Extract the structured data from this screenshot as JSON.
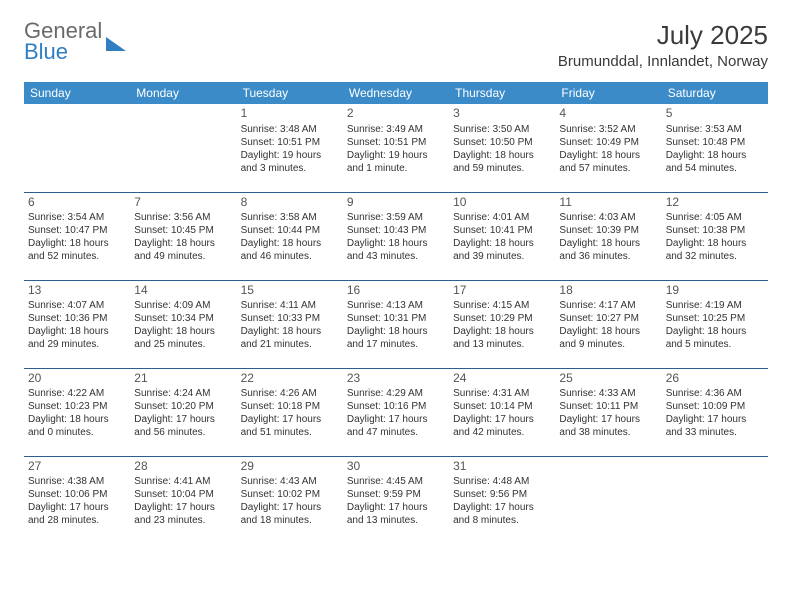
{
  "brand": {
    "part1": "General",
    "part2": "Blue"
  },
  "title": "July 2025",
  "location": "Brumunddal, Innlandet, Norway",
  "colors": {
    "header_bg": "#3b8bc9",
    "header_text": "#ffffff",
    "row_border": "#2c5f8d",
    "body_text": "#333333",
    "title_text": "#3a3a3a",
    "logo_gray": "#6a6a6a",
    "logo_blue": "#2f7fc2",
    "background": "#ffffff"
  },
  "weekdays": [
    "Sunday",
    "Monday",
    "Tuesday",
    "Wednesday",
    "Thursday",
    "Friday",
    "Saturday"
  ],
  "weeks": [
    [
      null,
      null,
      {
        "day": "1",
        "sunrise": "Sunrise: 3:48 AM",
        "sunset": "Sunset: 10:51 PM",
        "daylight": "Daylight: 19 hours and 3 minutes."
      },
      {
        "day": "2",
        "sunrise": "Sunrise: 3:49 AM",
        "sunset": "Sunset: 10:51 PM",
        "daylight": "Daylight: 19 hours and 1 minute."
      },
      {
        "day": "3",
        "sunrise": "Sunrise: 3:50 AM",
        "sunset": "Sunset: 10:50 PM",
        "daylight": "Daylight: 18 hours and 59 minutes."
      },
      {
        "day": "4",
        "sunrise": "Sunrise: 3:52 AM",
        "sunset": "Sunset: 10:49 PM",
        "daylight": "Daylight: 18 hours and 57 minutes."
      },
      {
        "day": "5",
        "sunrise": "Sunrise: 3:53 AM",
        "sunset": "Sunset: 10:48 PM",
        "daylight": "Daylight: 18 hours and 54 minutes."
      }
    ],
    [
      {
        "day": "6",
        "sunrise": "Sunrise: 3:54 AM",
        "sunset": "Sunset: 10:47 PM",
        "daylight": "Daylight: 18 hours and 52 minutes."
      },
      {
        "day": "7",
        "sunrise": "Sunrise: 3:56 AM",
        "sunset": "Sunset: 10:45 PM",
        "daylight": "Daylight: 18 hours and 49 minutes."
      },
      {
        "day": "8",
        "sunrise": "Sunrise: 3:58 AM",
        "sunset": "Sunset: 10:44 PM",
        "daylight": "Daylight: 18 hours and 46 minutes."
      },
      {
        "day": "9",
        "sunrise": "Sunrise: 3:59 AM",
        "sunset": "Sunset: 10:43 PM",
        "daylight": "Daylight: 18 hours and 43 minutes."
      },
      {
        "day": "10",
        "sunrise": "Sunrise: 4:01 AM",
        "sunset": "Sunset: 10:41 PM",
        "daylight": "Daylight: 18 hours and 39 minutes."
      },
      {
        "day": "11",
        "sunrise": "Sunrise: 4:03 AM",
        "sunset": "Sunset: 10:39 PM",
        "daylight": "Daylight: 18 hours and 36 minutes."
      },
      {
        "day": "12",
        "sunrise": "Sunrise: 4:05 AM",
        "sunset": "Sunset: 10:38 PM",
        "daylight": "Daylight: 18 hours and 32 minutes."
      }
    ],
    [
      {
        "day": "13",
        "sunrise": "Sunrise: 4:07 AM",
        "sunset": "Sunset: 10:36 PM",
        "daylight": "Daylight: 18 hours and 29 minutes."
      },
      {
        "day": "14",
        "sunrise": "Sunrise: 4:09 AM",
        "sunset": "Sunset: 10:34 PM",
        "daylight": "Daylight: 18 hours and 25 minutes."
      },
      {
        "day": "15",
        "sunrise": "Sunrise: 4:11 AM",
        "sunset": "Sunset: 10:33 PM",
        "daylight": "Daylight: 18 hours and 21 minutes."
      },
      {
        "day": "16",
        "sunrise": "Sunrise: 4:13 AM",
        "sunset": "Sunset: 10:31 PM",
        "daylight": "Daylight: 18 hours and 17 minutes."
      },
      {
        "day": "17",
        "sunrise": "Sunrise: 4:15 AM",
        "sunset": "Sunset: 10:29 PM",
        "daylight": "Daylight: 18 hours and 13 minutes."
      },
      {
        "day": "18",
        "sunrise": "Sunrise: 4:17 AM",
        "sunset": "Sunset: 10:27 PM",
        "daylight": "Daylight: 18 hours and 9 minutes."
      },
      {
        "day": "19",
        "sunrise": "Sunrise: 4:19 AM",
        "sunset": "Sunset: 10:25 PM",
        "daylight": "Daylight: 18 hours and 5 minutes."
      }
    ],
    [
      {
        "day": "20",
        "sunrise": "Sunrise: 4:22 AM",
        "sunset": "Sunset: 10:23 PM",
        "daylight": "Daylight: 18 hours and 0 minutes."
      },
      {
        "day": "21",
        "sunrise": "Sunrise: 4:24 AM",
        "sunset": "Sunset: 10:20 PM",
        "daylight": "Daylight: 17 hours and 56 minutes."
      },
      {
        "day": "22",
        "sunrise": "Sunrise: 4:26 AM",
        "sunset": "Sunset: 10:18 PM",
        "daylight": "Daylight: 17 hours and 51 minutes."
      },
      {
        "day": "23",
        "sunrise": "Sunrise: 4:29 AM",
        "sunset": "Sunset: 10:16 PM",
        "daylight": "Daylight: 17 hours and 47 minutes."
      },
      {
        "day": "24",
        "sunrise": "Sunrise: 4:31 AM",
        "sunset": "Sunset: 10:14 PM",
        "daylight": "Daylight: 17 hours and 42 minutes."
      },
      {
        "day": "25",
        "sunrise": "Sunrise: 4:33 AM",
        "sunset": "Sunset: 10:11 PM",
        "daylight": "Daylight: 17 hours and 38 minutes."
      },
      {
        "day": "26",
        "sunrise": "Sunrise: 4:36 AM",
        "sunset": "Sunset: 10:09 PM",
        "daylight": "Daylight: 17 hours and 33 minutes."
      }
    ],
    [
      {
        "day": "27",
        "sunrise": "Sunrise: 4:38 AM",
        "sunset": "Sunset: 10:06 PM",
        "daylight": "Daylight: 17 hours and 28 minutes."
      },
      {
        "day": "28",
        "sunrise": "Sunrise: 4:41 AM",
        "sunset": "Sunset: 10:04 PM",
        "daylight": "Daylight: 17 hours and 23 minutes."
      },
      {
        "day": "29",
        "sunrise": "Sunrise: 4:43 AM",
        "sunset": "Sunset: 10:02 PM",
        "daylight": "Daylight: 17 hours and 18 minutes."
      },
      {
        "day": "30",
        "sunrise": "Sunrise: 4:45 AM",
        "sunset": "Sunset: 9:59 PM",
        "daylight": "Daylight: 17 hours and 13 minutes."
      },
      {
        "day": "31",
        "sunrise": "Sunrise: 4:48 AM",
        "sunset": "Sunset: 9:56 PM",
        "daylight": "Daylight: 17 hours and 8 minutes."
      },
      null,
      null
    ]
  ]
}
